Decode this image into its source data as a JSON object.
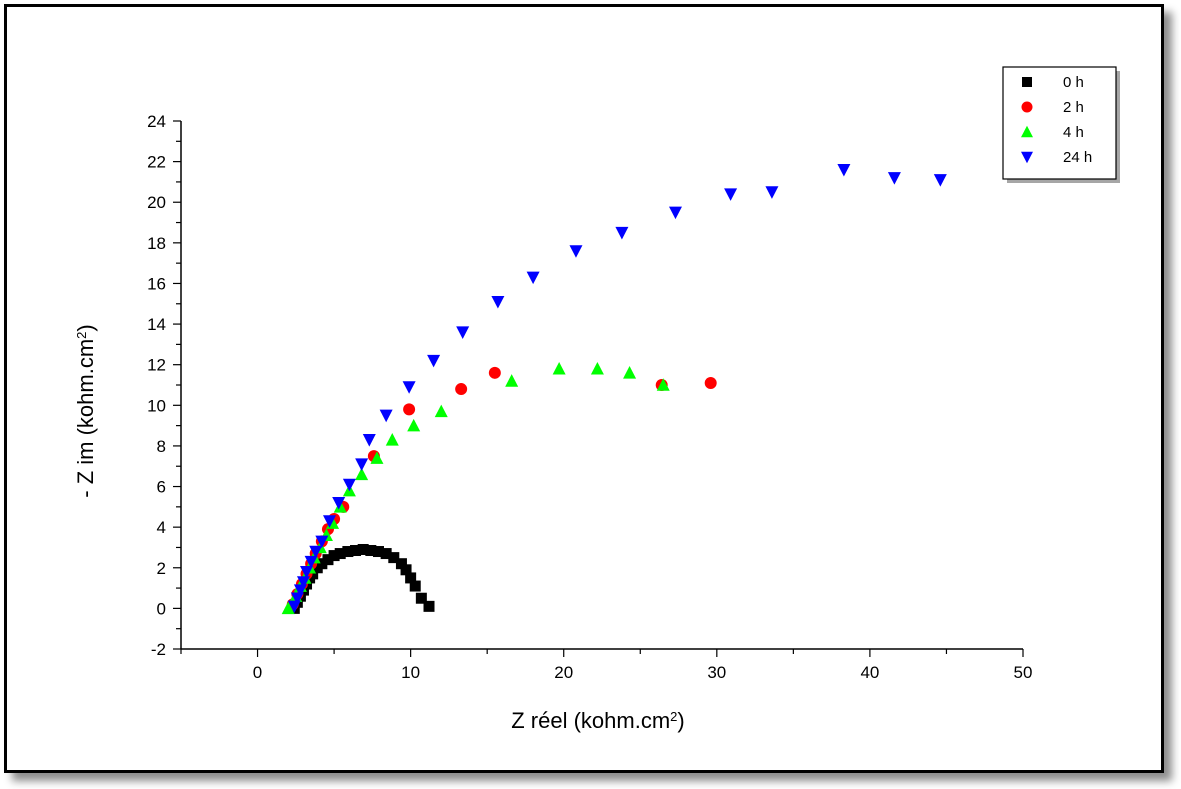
{
  "chart_data": {
    "type": "scatter",
    "xlabel": "Z réel (kohm.cm",
    "xlabel_sup": "2",
    "xlabel_end": ")",
    "ylabel": "- Z im (kohm.cm",
    "ylabel_sup": "2",
    "ylabel_end": ")",
    "xlim": [
      -5,
      50
    ],
    "ylim": [
      -2,
      24
    ],
    "x_ticks": [
      0,
      10,
      20,
      30,
      40,
      50
    ],
    "y_ticks": [
      -2,
      0,
      2,
      4,
      6,
      8,
      10,
      12,
      14,
      16,
      18,
      20,
      22,
      24
    ],
    "grid": false,
    "legend_position": "top-right",
    "series": [
      {
        "name": "0 h",
        "marker": "square",
        "color": "#000000",
        "x": [
          2.4,
          2.6,
          2.8,
          3.0,
          3.2,
          3.4,
          3.6,
          3.9,
          4.2,
          4.6,
          5.0,
          5.4,
          5.9,
          6.4,
          6.9,
          7.4,
          7.9,
          8.4,
          8.9,
          9.4,
          9.7,
          10.0,
          10.3,
          10.7,
          11.2
        ],
        "y": [
          0.0,
          0.3,
          0.6,
          0.9,
          1.2,
          1.5,
          1.7,
          2.0,
          2.2,
          2.4,
          2.6,
          2.7,
          2.8,
          2.85,
          2.9,
          2.85,
          2.8,
          2.7,
          2.5,
          2.2,
          1.9,
          1.5,
          1.1,
          0.5,
          0.1
        ]
      },
      {
        "name": "2 h",
        "marker": "circle",
        "color": "#ff0000",
        "x": [
          2.3,
          2.6,
          2.9,
          3.2,
          3.5,
          3.8,
          4.2,
          4.6,
          5.0,
          5.6,
          7.6,
          9.9,
          13.3,
          15.5,
          26.4,
          29.6
        ],
        "y": [
          0.2,
          0.7,
          1.2,
          1.7,
          2.2,
          2.7,
          3.3,
          3.9,
          4.4,
          5.0,
          7.5,
          9.8,
          10.8,
          11.6,
          11.0,
          11.1
        ]
      },
      {
        "name": "4 h",
        "marker": "triangle-up",
        "color": "#00ff00",
        "x": [
          2.0,
          2.5,
          2.8,
          3.1,
          3.4,
          3.7,
          4.1,
          4.5,
          4.9,
          5.4,
          6.0,
          6.8,
          7.8,
          8.8,
          10.2,
          12.0,
          16.6,
          19.7,
          22.2,
          24.3,
          26.5
        ],
        "y": [
          0.0,
          0.6,
          1.1,
          1.5,
          2.0,
          2.5,
          3.0,
          3.6,
          4.2,
          5.0,
          5.8,
          6.6,
          7.4,
          8.3,
          9.0,
          9.7,
          11.2,
          11.8,
          11.8,
          11.6,
          11.0
        ]
      },
      {
        "name": "24 h",
        "marker": "triangle-down",
        "color": "#0000ff",
        "x": [
          2.4,
          2.6,
          2.8,
          3.0,
          3.2,
          3.5,
          3.8,
          4.2,
          4.7,
          5.3,
          6.0,
          6.8,
          7.3,
          8.4,
          9.9,
          11.5,
          13.4,
          15.7,
          18.0,
          20.8,
          23.8,
          27.3,
          30.9,
          33.6,
          38.3,
          41.6,
          44.6
        ],
        "y": [
          0.1,
          0.5,
          0.9,
          1.3,
          1.8,
          2.3,
          2.8,
          3.3,
          4.3,
          5.2,
          6.1,
          7.1,
          8.3,
          9.5,
          10.9,
          12.2,
          13.6,
          15.1,
          16.3,
          17.6,
          18.5,
          19.5,
          20.4,
          20.5,
          21.6,
          21.2,
          21.1
        ]
      }
    ]
  }
}
